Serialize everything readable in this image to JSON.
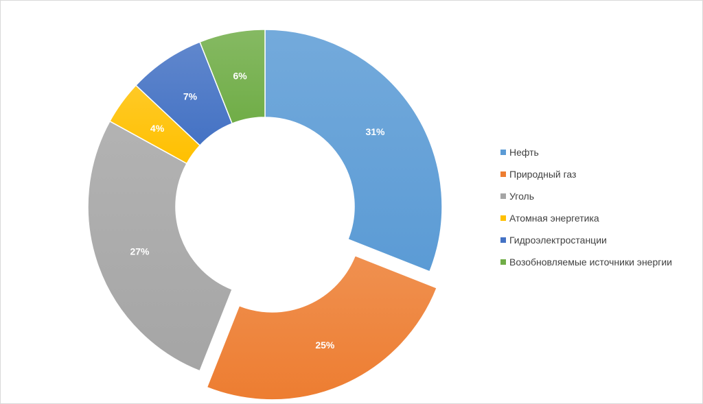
{
  "chart_data": {
    "type": "pie",
    "variant": "donut",
    "title": "",
    "legend_position": "right",
    "exploded_slice": "Природный газ",
    "slices": [
      {
        "name": "Нефть",
        "value": 31,
        "label": "31%",
        "color": "#5B9BD5"
      },
      {
        "name": "Природный газ",
        "value": 25,
        "label": "25%",
        "color": "#ED7D31"
      },
      {
        "name": "Уголь",
        "value": 27,
        "label": "27%",
        "color": "#A5A5A5"
      },
      {
        "name": "Атомная энергетика",
        "value": 4,
        "label": "4%",
        "color": "#FFC000"
      },
      {
        "name": "Гидроэлектростанции",
        "value": 7,
        "label": "7%",
        "color": "#4472C4"
      },
      {
        "name": "Возобновляемые источники энергии",
        "value": 6,
        "label": "6%",
        "color": "#70AD47"
      }
    ]
  }
}
